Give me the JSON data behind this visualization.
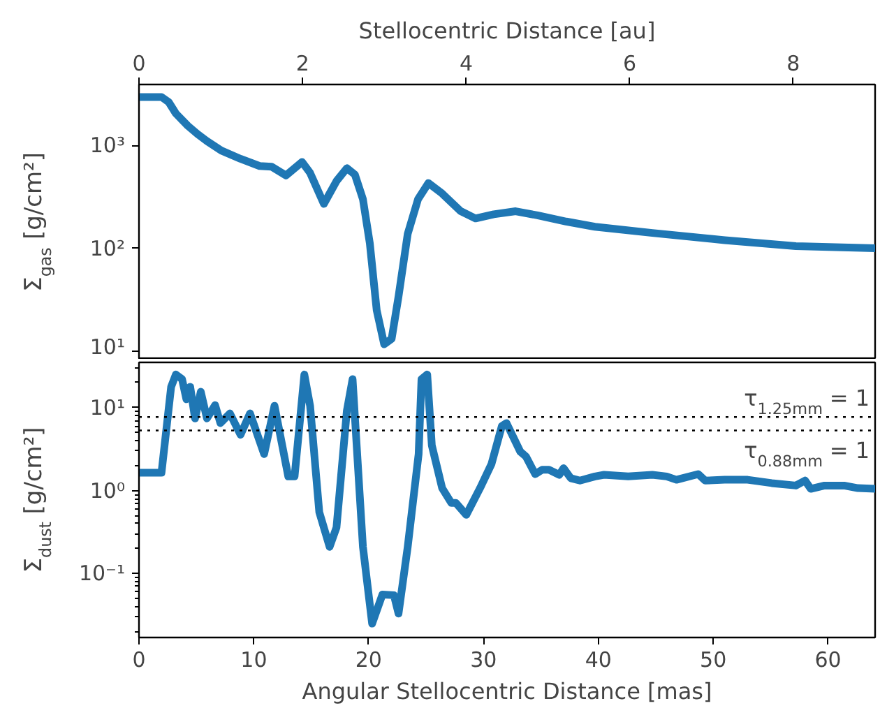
{
  "chart_data": [
    {
      "type": "line",
      "ylabel": "Σ$_{gas}$ [g/cm²]",
      "x2label": "Stellocentric Distance [au]",
      "log": "y",
      "tick_labels": "y",
      "x": [
        0,
        1.96,
        2.59,
        3.21,
        4.25,
        5.09,
        5.92,
        7.17,
        8.84,
        10.5,
        11.55,
        12.8,
        14.2,
        14.9,
        16.1,
        17.2,
        18.1,
        18.8,
        19.5,
        20.1,
        20.7,
        21.35,
        22.0,
        22.6,
        23.4,
        24.3,
        25.2,
        26.4,
        28.0,
        29.3,
        30.9,
        32.8,
        34.7,
        37.2,
        39.7,
        44.7,
        51.0,
        57.2,
        64.1
      ],
      "series": [
        {
          "color": "#1f77b4",
          "values": [
            2950,
            2950,
            2630,
            2040,
            1550,
            1290,
            1100,
            890,
            740,
            630,
            620,
            510,
            690,
            540,
            270,
            450,
            600,
            520,
            300,
            112,
            25,
            11.7,
            13.2,
            34,
            138,
            300,
            430,
            340,
            230,
            195,
            214,
            229,
            209,
            182,
            162,
            141,
            120,
            105,
            100
          ]
        }
      ],
      "xlim": [
        0,
        64.1
      ],
      "x2lim": [
        0,
        9.0
      ],
      "x2ticks": [
        0,
        2,
        4,
        6,
        8
      ],
      "ylim": [
        8.3,
        3900
      ],
      "yticks": [
        {
          "value": 10,
          "label": "10¹"
        },
        {
          "value": 100,
          "label": "10²"
        },
        {
          "value": 1000,
          "label": "10³"
        }
      ]
    },
    {
      "type": "line",
      "xlabel": "Angular Stellocentric Distance [mas]",
      "ylabel": "Σ$_{dust}$ [g/cm²]",
      "log": "y",
      "x": [
        0,
        1.96,
        2.8,
        3.21,
        3.75,
        4.13,
        4.46,
        4.88,
        5.38,
        5.92,
        6.63,
        7.09,
        7.92,
        8.84,
        9.67,
        10.9,
        11.8,
        13.0,
        13.55,
        14.4,
        14.9,
        15.7,
        16.6,
        17.2,
        18.1,
        18.6,
        19.5,
        20.3,
        21.2,
        22.2,
        22.6,
        23.4,
        24.35,
        24.6,
        25.1,
        25.5,
        26.4,
        27.2,
        27.6,
        28.5,
        29.7,
        30.7,
        31.6,
        32.0,
        33.2,
        33.7,
        34.5,
        35.1,
        35.7,
        36.6,
        36.97,
        37.6,
        38.4,
        39.7,
        40.5,
        42.6,
        44.7,
        45.95,
        46.8,
        48.7,
        49.3,
        51.0,
        53.0,
        55.1,
        57.2,
        58.0,
        58.5,
        59.7,
        61.4,
        62.6,
        64.1
      ],
      "series": [
        {
          "color": "#1f77b4",
          "values": [
            1.64,
            1.64,
            17.8,
            25,
            22,
            12.6,
            17.8,
            7.4,
            15.5,
            7.4,
            10.7,
            6.5,
            8.5,
            4.7,
            8.5,
            2.75,
            10.5,
            1.48,
            1.48,
            25,
            10.5,
            0.55,
            0.21,
            0.36,
            9.1,
            22,
            0.21,
            0.025,
            0.056,
            0.055,
            0.033,
            0.21,
            2.75,
            22,
            25,
            3.5,
            1.07,
            0.71,
            0.71,
            0.51,
            1.07,
            2.1,
            6.0,
            6.5,
            2.95,
            2.57,
            1.58,
            1.78,
            1.78,
            1.55,
            1.86,
            1.41,
            1.32,
            1.48,
            1.55,
            1.48,
            1.55,
            1.48,
            1.35,
            1.58,
            1.32,
            1.35,
            1.35,
            1.23,
            1.15,
            1.32,
            1.05,
            1.15,
            1.15,
            1.07,
            1.05
          ]
        }
      ],
      "xlim": [
        0,
        64.1
      ],
      "xticks": [
        0,
        10,
        20,
        30,
        40,
        50,
        60
      ],
      "ylim": [
        0.017,
        35
      ],
      "yticks": [
        {
          "value": 0.1,
          "label": "10⁻¹"
        },
        {
          "value": 1,
          "label": "10⁰"
        },
        {
          "value": 10,
          "label": "10¹"
        }
      ],
      "ref_lines": [
        {
          "axis": "y",
          "value": 7.7,
          "color": "#000000",
          "line_style": "dotted"
        },
        {
          "axis": "y",
          "value": 5.3,
          "color": "#000000",
          "line_style": "dotted"
        }
      ],
      "annotations": [
        {
          "text": "τ$_{1.25mm}$ = 1",
          "x": 64.1,
          "y": 7.7
        },
        {
          "text": "τ$_{0.88mm}$ = 1",
          "x": 64.1,
          "y": 5.3
        }
      ]
    }
  ]
}
